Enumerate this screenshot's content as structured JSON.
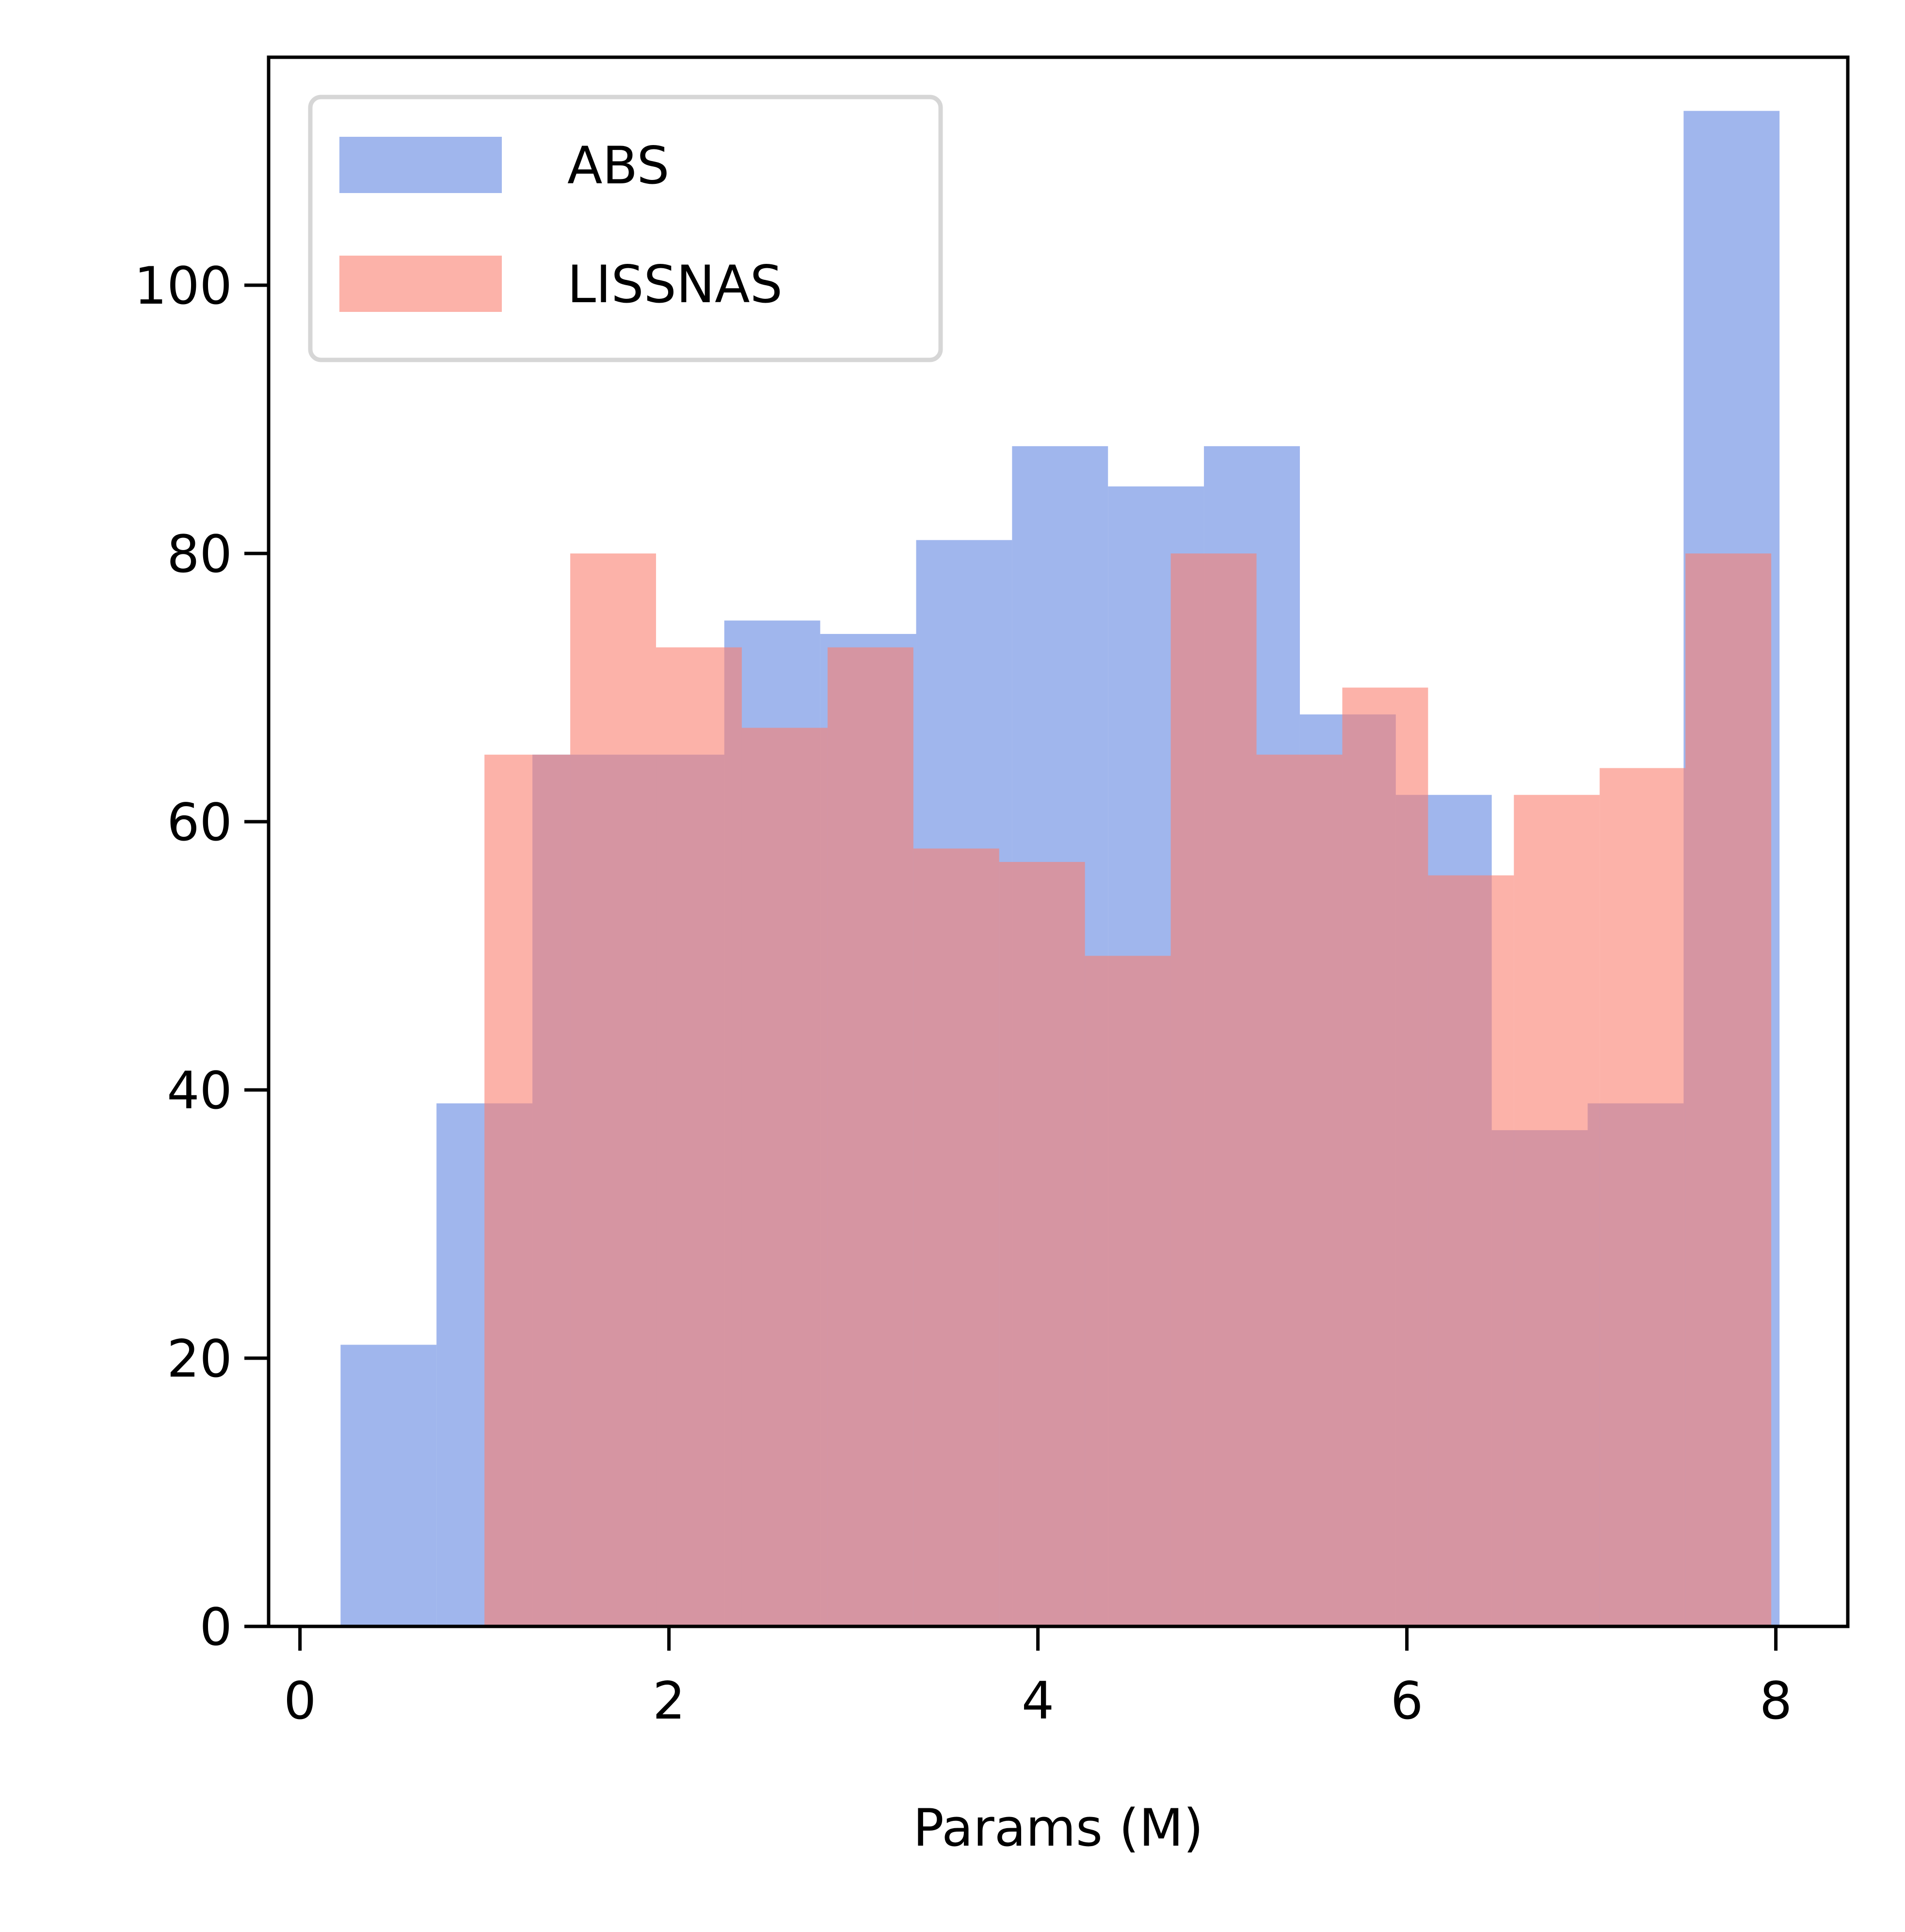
{
  "chart_data": {
    "type": "bar",
    "title": "",
    "xlabel": "Params (M)",
    "ylabel": "",
    "xlim": [
      -0.17,
      8.39
    ],
    "ylim": [
      0,
      117
    ],
    "xticks": [
      0,
      2,
      4,
      6,
      8
    ],
    "yticks": [
      0,
      20,
      40,
      60,
      80,
      100
    ],
    "grid": false,
    "legend_position": "top-left",
    "series": [
      {
        "name": "ABS",
        "color": "#6b8de3",
        "opacity": 0.64,
        "edges": [
          0.22,
          0.74,
          1.26,
          1.78,
          2.3,
          2.82,
          3.34,
          3.86,
          4.38,
          4.9,
          5.42,
          5.94,
          6.46,
          6.98,
          7.5,
          8.02
        ],
        "values": [
          21,
          39,
          65,
          65,
          75,
          74,
          81,
          88,
          85,
          88,
          68,
          62,
          37,
          39,
          113
        ]
      },
      {
        "name": "LISSNAS",
        "color": "#fa7f6f",
        "opacity": 0.6,
        "edges": [
          1.0,
          1.465,
          1.93,
          2.395,
          2.86,
          3.325,
          3.79,
          4.255,
          4.72,
          5.185,
          5.65,
          6.115,
          6.58,
          7.045,
          7.51,
          7.975
        ],
        "values": [
          65,
          80,
          73,
          67,
          73,
          58,
          57,
          50,
          80,
          65,
          70,
          56,
          62,
          64,
          80
        ]
      }
    ]
  }
}
